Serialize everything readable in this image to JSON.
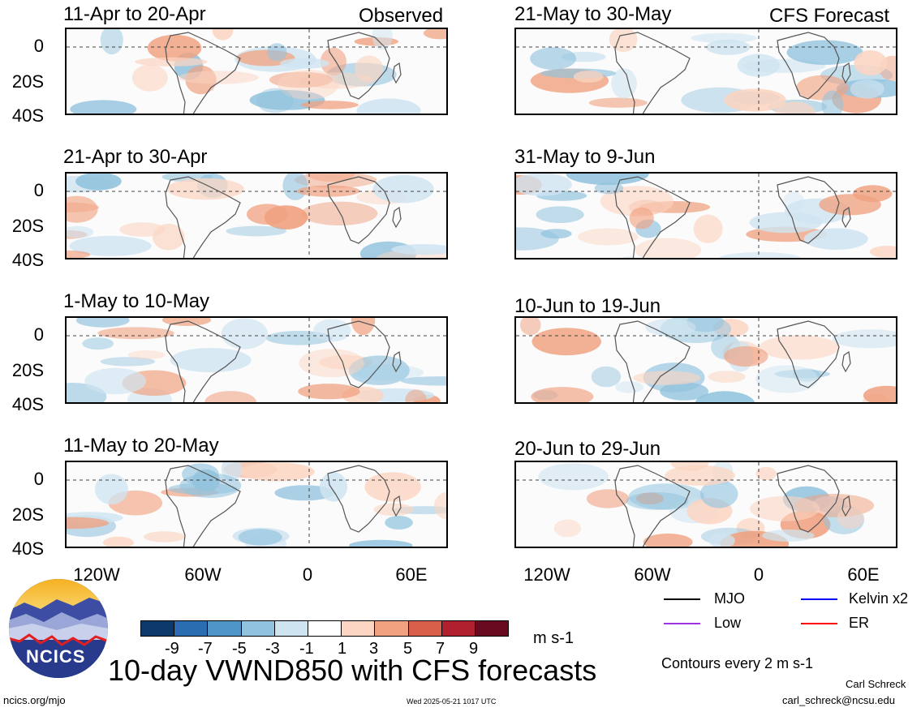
{
  "panels_left": [
    {
      "label": "11-Apr to 20-Apr",
      "tag": "Observed"
    },
    {
      "label": "21-Apr to 30-Apr",
      "tag": ""
    },
    {
      "label": "1-May to 10-May",
      "tag": ""
    },
    {
      "label": "11-May to 20-May",
      "tag": ""
    }
  ],
  "panels_right": [
    {
      "label": "21-May to 30-May",
      "tag": "CFS Forecast"
    },
    {
      "label": "31-May to 9-Jun",
      "tag": ""
    },
    {
      "label": "10-Jun to 19-Jun",
      "tag": ""
    },
    {
      "label": "20-Jun to 29-Jun",
      "tag": ""
    }
  ],
  "y_ticks": [
    "0",
    "20S",
    "40S"
  ],
  "x_ticks": [
    "120W",
    "60W",
    "0",
    "60E"
  ],
  "colorbar": {
    "labels": [
      "-9",
      "-7",
      "-5",
      "-3",
      "-1",
      "1",
      "3",
      "5",
      "7",
      "9"
    ],
    "units": "m s-1",
    "colors": [
      "#0d3a6a",
      "#2a6db0",
      "#4f95c8",
      "#92c3de",
      "#cfe4f1",
      "#ffffff",
      "#fbd5c2",
      "#f0a180",
      "#d8604b",
      "#b0202e",
      "#6a0a20"
    ]
  },
  "legend": {
    "items": [
      {
        "label": "MJO",
        "color": "#000000"
      },
      {
        "label": "Kelvin x2",
        "color": "#0000ff"
      },
      {
        "label": "Low",
        "color": "#a033e0"
      },
      {
        "label": "ER",
        "color": "#ff0000"
      }
    ],
    "contours_note": "Contours every 2 m s-1"
  },
  "logo_text": "NCICS",
  "main_title": "10-day VWND850 with CFS forecasts",
  "footer": {
    "url": "ncics.org/mjo",
    "timestamp": "Wed 2025-05-21 1017 UTC",
    "author": "Carl Schreck",
    "email": "carl_schreck@ncsu.edu"
  },
  "chart_data": [
    {
      "type": "heatmap",
      "variable": "VWND850 anomaly",
      "period": "11-Apr to 20-Apr",
      "source": "Observed",
      "xlabel": "",
      "ylabel": "",
      "x_ticks": [
        "120W",
        "60W",
        "0",
        "60E"
      ],
      "y_ticks": [
        "0",
        "20S",
        "40S"
      ]
    },
    {
      "type": "heatmap",
      "variable": "VWND850 anomaly",
      "period": "21-Apr to 30-Apr",
      "source": "Observed"
    },
    {
      "type": "heatmap",
      "variable": "VWND850 anomaly",
      "period": "1-May to 10-May",
      "source": "Observed"
    },
    {
      "type": "heatmap",
      "variable": "VWND850 anomaly",
      "period": "11-May to 20-May",
      "source": "Observed"
    },
    {
      "type": "heatmap",
      "variable": "VWND850 anomaly",
      "period": "21-May to 30-May",
      "source": "CFS Forecast"
    },
    {
      "type": "heatmap",
      "variable": "VWND850 anomaly",
      "period": "31-May to 9-Jun",
      "source": "CFS Forecast"
    },
    {
      "type": "heatmap",
      "variable": "VWND850 anomaly",
      "period": "10-Jun to 19-Jun",
      "source": "CFS Forecast"
    },
    {
      "type": "heatmap",
      "variable": "VWND850 anomaly",
      "period": "20-Jun to 29-Jun",
      "source": "CFS Forecast"
    }
  ]
}
